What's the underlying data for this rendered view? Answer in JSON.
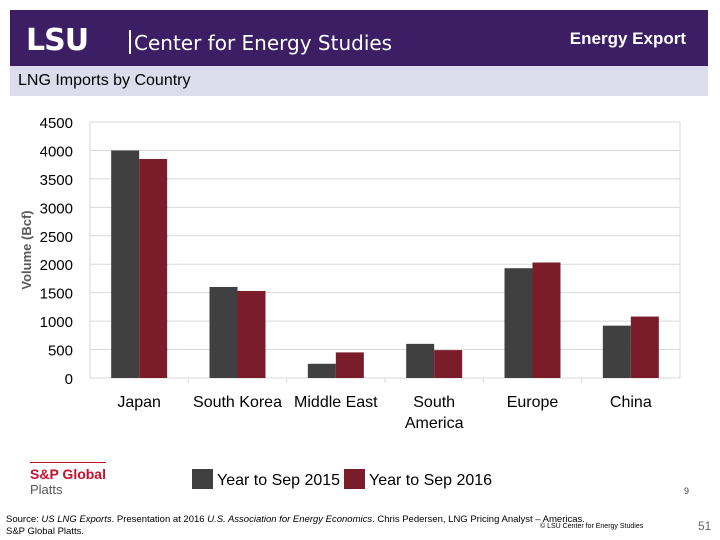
{
  "header": {
    "logo_text": "LSU",
    "center_name": "Center for Energy Studies",
    "section": "Energy Export",
    "background": "#3b1e63"
  },
  "slide_title": "LNG Imports by Country",
  "chart_data": {
    "type": "bar",
    "title": "",
    "xlabel": "",
    "ylabel": "Volume (Bcf)",
    "ylim": [
      0,
      4500
    ],
    "yticks": [
      0,
      500,
      1000,
      1500,
      2000,
      2500,
      3000,
      3500,
      4000,
      4500
    ],
    "grid": true,
    "legend_position": "bottom",
    "categories": [
      [
        "Japan"
      ],
      [
        "South Korea"
      ],
      [
        "Middle East"
      ],
      [
        "South",
        "America"
      ],
      [
        "Europe"
      ],
      [
        "China"
      ]
    ],
    "series": [
      {
        "name": "Year to Sep 2015",
        "color": "#404040",
        "values": [
          4000,
          1600,
          250,
          600,
          1930,
          920
        ]
      },
      {
        "name": "Year to Sep 2016",
        "color": "#7b1c2b",
        "values": [
          3850,
          1530,
          450,
          490,
          2030,
          1080
        ]
      }
    ]
  },
  "sp_logo": {
    "name": "S&P Global",
    "sub": "Platts"
  },
  "page_small": "9",
  "footer": {
    "source_label": "Source:",
    "source_title": "US LNG Exports",
    "source_text_1": ". Presentation at 2016 ",
    "source_org": "U.S. Association for Energy Economics",
    "source_text_2": ". Chris Pedersen, LNG Pricing Analyst – Americas.",
    "source_line2": "S&P Global Platts.",
    "copyright": "© LSU Center for Energy Studies",
    "page_number": "51"
  }
}
